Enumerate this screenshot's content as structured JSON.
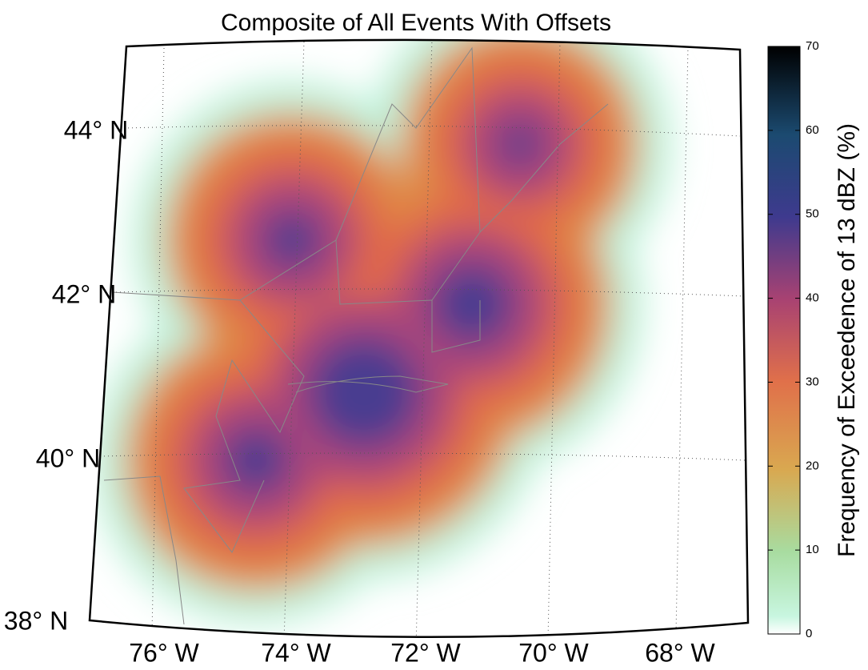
{
  "map": {
    "title": "Composite of All Events With Offsets",
    "latitude_labels": [
      "44° N",
      "42° N",
      "40° N",
      "38° N"
    ],
    "longitude_labels": [
      "76° W",
      "74° W",
      "72° W",
      "70° W",
      "68° W"
    ],
    "colorbar": {
      "label": "Frequency of Exceedence of 13 dBZ (%)",
      "lim": [
        0,
        70
      ],
      "ticks": [
        0,
        10,
        20,
        30,
        40,
        50,
        60,
        70
      ]
    }
  }
}
